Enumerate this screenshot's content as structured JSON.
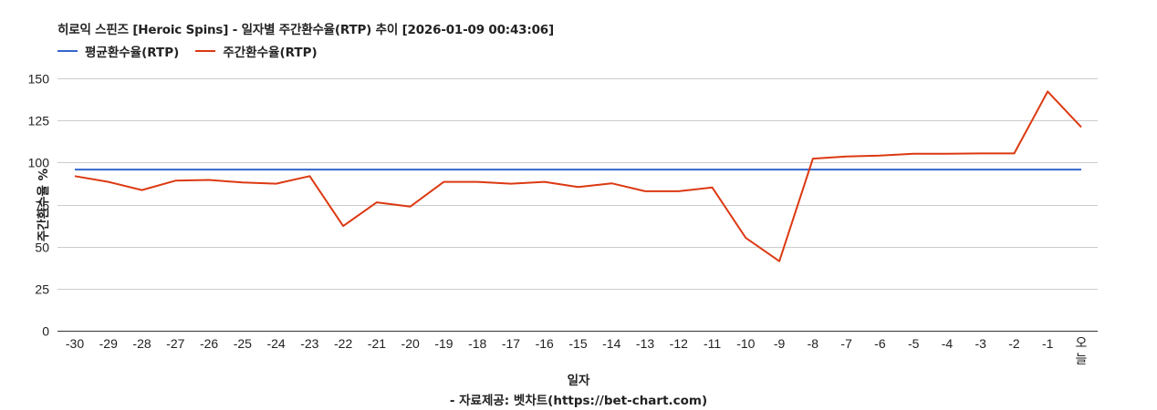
{
  "title": "히로익 스핀즈 [Heroic Spins] - 일자별 주간환수율(RTP) 추이 [2026-01-09 00:43:06]",
  "legend": [
    {
      "label": "평균환수율(RTP)",
      "color": "#3366cc"
    },
    {
      "label": "주간환수율(RTP)",
      "color": "#dc3912"
    }
  ],
  "y_axis_label": "주간환수율 %",
  "x_axis_label": "일자",
  "source": "- 자료제공: 벳차트(https://bet-chart.com)",
  "chart_data": {
    "type": "line",
    "title": "히로익 스핀즈 [Heroic Spins] - 일자별 주간환수율(RTP) 추이 [2026-01-09 00:43:06]",
    "xlabel": "일자",
    "ylabel": "주간환수율 %",
    "ylim": [
      0,
      150
    ],
    "yticks": [
      0,
      25,
      50,
      75,
      100,
      125,
      150
    ],
    "grid": true,
    "legend_position": "top",
    "categories": [
      "-30",
      "-29",
      "-28",
      "-27",
      "-26",
      "-25",
      "-24",
      "-23",
      "-22",
      "-21",
      "-20",
      "-19",
      "-18",
      "-17",
      "-16",
      "-15",
      "-14",
      "-13",
      "-12",
      "-11",
      "-10",
      "-9",
      "-8",
      "-7",
      "-6",
      "-5",
      "-4",
      "-3",
      "-2",
      "-1",
      "오늘"
    ],
    "series": [
      {
        "name": "평균환수율(RTP)",
        "color": "#3366cc",
        "values": [
          95.8,
          95.8,
          95.8,
          95.8,
          95.8,
          95.8,
          95.8,
          95.8,
          95.8,
          95.8,
          95.8,
          95.8,
          95.8,
          95.8,
          95.8,
          95.8,
          95.8,
          95.8,
          95.8,
          95.8,
          95.8,
          95.8,
          95.8,
          95.8,
          95.8,
          95.8,
          95.8,
          95.8,
          95.8,
          95.8,
          95.8
        ]
      },
      {
        "name": "주간환수율(RTP)",
        "color": "#dc3912",
        "values": [
          91.9,
          88.5,
          83.6,
          89.2,
          89.6,
          88.1,
          87.4,
          91.9,
          62.2,
          76.3,
          73.8,
          88.5,
          88.5,
          87.4,
          88.5,
          85.4,
          87.6,
          82.9,
          82.9,
          85.1,
          55.2,
          41.3,
          102.3,
          103.6,
          104.1,
          105.2,
          105.2,
          105.4,
          105.4,
          142.2,
          121.0
        ]
      }
    ]
  }
}
